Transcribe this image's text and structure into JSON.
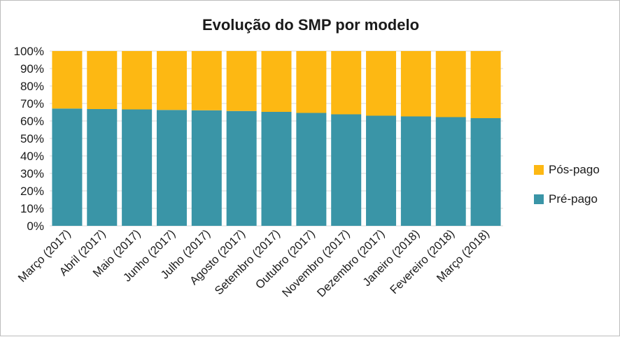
{
  "chart_data": {
    "type": "bar",
    "stacked": true,
    "normalized": true,
    "title": "Evolução do SMP por modelo",
    "xlabel": "",
    "ylabel": "",
    "ylim": [
      0,
      1
    ],
    "y_ticks": [
      "0%",
      "10%",
      "20%",
      "30%",
      "40%",
      "50%",
      "60%",
      "70%",
      "80%",
      "90%",
      "100%"
    ],
    "grid": true,
    "legend_position": "right",
    "categories": [
      "Março (2017)",
      "Abril (2017)",
      "Maio (2017)",
      "Junho (2017)",
      "Julho (2017)",
      "Agosto (2017)",
      "Setembro (2017)",
      "Outubro (2017)",
      "Novembro (2017)",
      "Dezembro (2017)",
      "Janeiro (2018)",
      "Fevereiro (2018)",
      "Março (2018)"
    ],
    "series": [
      {
        "name": "Pré-pago",
        "color": "#3a95a7",
        "values": [
          0.671,
          0.668,
          0.666,
          0.663,
          0.661,
          0.657,
          0.652,
          0.646,
          0.638,
          0.63,
          0.626,
          0.622,
          0.616
        ]
      },
      {
        "name": "Pós-pago",
        "color": "#fdb813",
        "values": [
          0.329,
          0.332,
          0.334,
          0.337,
          0.339,
          0.343,
          0.348,
          0.354,
          0.362,
          0.37,
          0.374,
          0.378,
          0.384
        ]
      }
    ]
  }
}
